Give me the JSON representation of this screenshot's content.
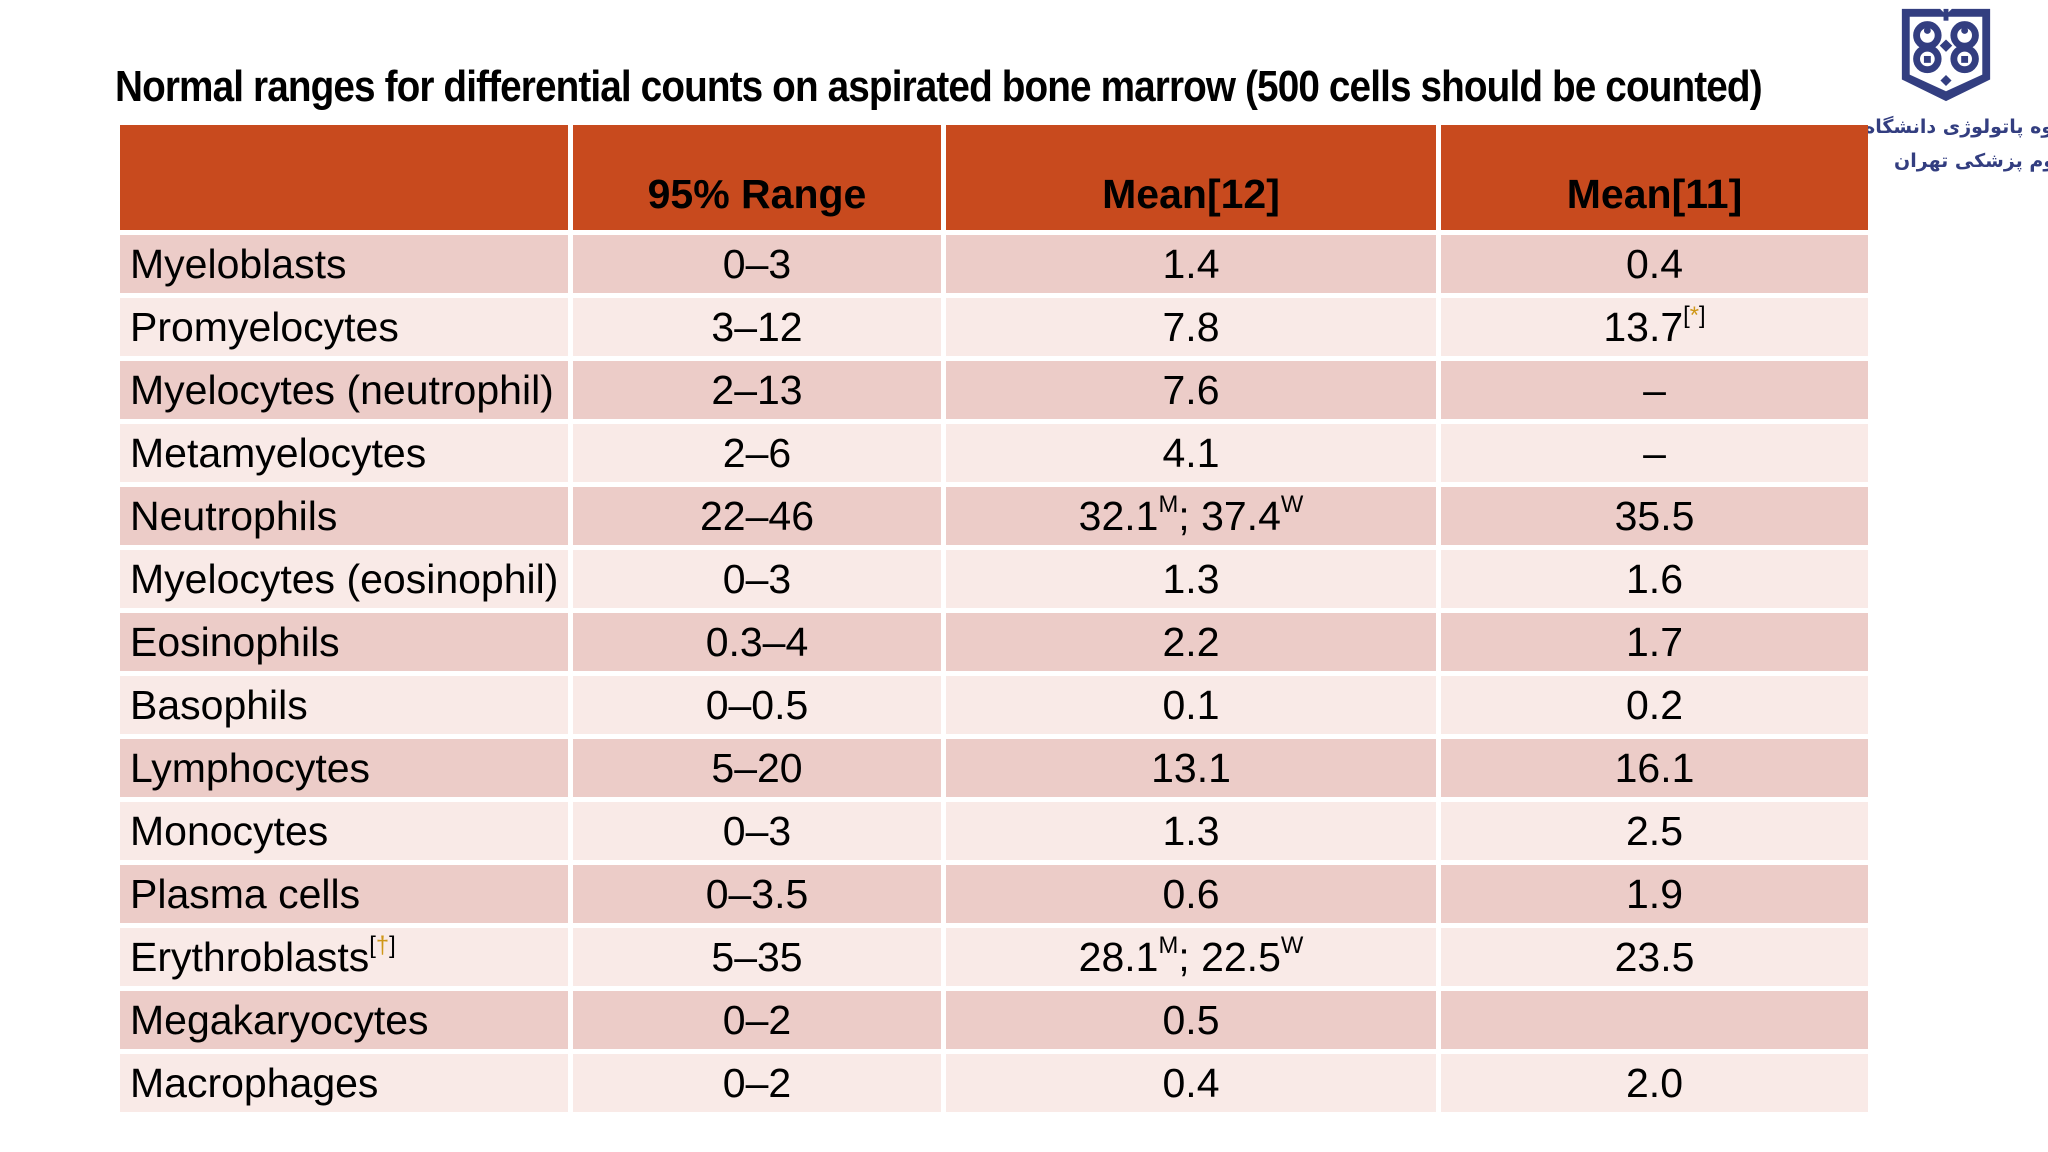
{
  "title": "Normal ranges for differential counts on aspirated bone marrow (500 cells should be counted)",
  "logo": {
    "emblem": "tums-book-emblem",
    "line1": "گروه پاتولوژی دانشگاه",
    "line2": "علوم پزشکی تهران"
  },
  "colors": {
    "header_bg": "#c84a1e",
    "row_dark": "#ecccc8",
    "row_light": "#f9eae7",
    "footnote_gold": "#cf9718",
    "logo_navy": "#333e80",
    "text": "#000000"
  },
  "table": {
    "headers": [
      "",
      "95% Range",
      "Mean[12]",
      "Mean[11]"
    ],
    "rows": [
      {
        "label": [
          {
            "t": "Myeloblasts"
          }
        ],
        "range": [
          {
            "t": "0–3"
          }
        ],
        "mean12": [
          {
            "t": "1.4"
          }
        ],
        "mean11": [
          {
            "t": "0.4"
          }
        ]
      },
      {
        "label": [
          {
            "t": "Promyelocytes"
          }
        ],
        "range": [
          {
            "t": "3–12"
          }
        ],
        "mean12": [
          {
            "t": "7.8"
          }
        ],
        "mean11": [
          {
            "t": "13.7"
          },
          {
            "sup": "["
          },
          {
            "sup": "*",
            "gold": true
          },
          {
            "sup": "]"
          }
        ]
      },
      {
        "label": [
          {
            "t": "Myelocytes (neutrophil)"
          }
        ],
        "range": [
          {
            "t": "2–13"
          }
        ],
        "mean12": [
          {
            "t": "7.6"
          }
        ],
        "mean11": [
          {
            "t": "–"
          }
        ]
      },
      {
        "label": [
          {
            "t": "Metamyelocytes"
          }
        ],
        "range": [
          {
            "t": "2–6"
          }
        ],
        "mean12": [
          {
            "t": "4.1"
          }
        ],
        "mean11": [
          {
            "t": "–"
          }
        ]
      },
      {
        "label": [
          {
            "t": "Neutrophils"
          }
        ],
        "range": [
          {
            "t": "22–46"
          }
        ],
        "mean12": [
          {
            "t": "32.1"
          },
          {
            "sup": "M"
          },
          {
            "t": "; 37.4"
          },
          {
            "sup": "W"
          }
        ],
        "mean11": [
          {
            "t": "35.5"
          }
        ]
      },
      {
        "label": [
          {
            "t": "Myelocytes (eosinophil)"
          }
        ],
        "range": [
          {
            "t": "0–3"
          }
        ],
        "mean12": [
          {
            "t": "1.3"
          }
        ],
        "mean11": [
          {
            "t": "1.6"
          }
        ]
      },
      {
        "label": [
          {
            "t": "Eosinophils"
          }
        ],
        "range": [
          {
            "t": "0.3–4"
          }
        ],
        "mean12": [
          {
            "t": "2.2"
          }
        ],
        "mean11": [
          {
            "t": "1.7"
          }
        ]
      },
      {
        "label": [
          {
            "t": "Basophils"
          }
        ],
        "range": [
          {
            "t": "0–0.5"
          }
        ],
        "mean12": [
          {
            "t": "0.1"
          }
        ],
        "mean11": [
          {
            "t": "0.2"
          }
        ]
      },
      {
        "label": [
          {
            "t": "Lymphocytes"
          }
        ],
        "range": [
          {
            "t": "5–20"
          }
        ],
        "mean12": [
          {
            "t": "13.1"
          }
        ],
        "mean11": [
          {
            "t": "16.1"
          }
        ]
      },
      {
        "label": [
          {
            "t": "Monocytes"
          }
        ],
        "range": [
          {
            "t": "0–3"
          }
        ],
        "mean12": [
          {
            "t": "1.3"
          }
        ],
        "mean11": [
          {
            "t": "2.5"
          }
        ]
      },
      {
        "label": [
          {
            "t": "Plasma cells"
          }
        ],
        "range": [
          {
            "t": "0–3.5"
          }
        ],
        "mean12": [
          {
            "t": "0.6"
          }
        ],
        "mean11": [
          {
            "t": "1.9"
          }
        ]
      },
      {
        "label": [
          {
            "t": "Erythroblasts"
          },
          {
            "sup": "["
          },
          {
            "sup": "†",
            "gold": true
          },
          {
            "sup": "]"
          }
        ],
        "range": [
          {
            "t": "5–35"
          }
        ],
        "mean12": [
          {
            "t": "28.1"
          },
          {
            "sup": "M"
          },
          {
            "t": "; 22.5"
          },
          {
            "sup": "W"
          }
        ],
        "mean11": [
          {
            "t": "23.5"
          }
        ]
      },
      {
        "label": [
          {
            "t": "Megakaryocytes"
          }
        ],
        "range": [
          {
            "t": "0–2"
          }
        ],
        "mean12": [
          {
            "t": "0.5"
          }
        ],
        "mean11": []
      },
      {
        "label": [
          {
            "t": "Macrophages"
          }
        ],
        "range": [
          {
            "t": "0–2"
          }
        ],
        "mean12": [
          {
            "t": "0.4"
          }
        ],
        "mean11": [
          {
            "t": "2.0"
          }
        ]
      }
    ]
  }
}
